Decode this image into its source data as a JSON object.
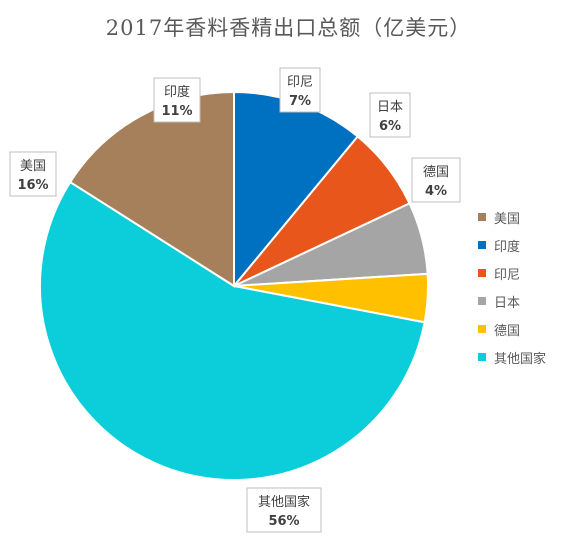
{
  "chart_data": {
    "type": "pie",
    "title": "2017年香料香精出口总额（亿美元）",
    "categories": [
      "美国",
      "印度",
      "印尼",
      "日本",
      "德国",
      "其他国家"
    ],
    "values": [
      16,
      11,
      7,
      6,
      4,
      56
    ],
    "labels": [
      "16%",
      "11%",
      "7%",
      "6%",
      "4%",
      "56%"
    ],
    "colors": [
      "#A5805A",
      "#0070C0",
      "#E8561B",
      "#A5A5A5",
      "#FFC000",
      "#0CCDDA"
    ],
    "legend_position": "right"
  }
}
